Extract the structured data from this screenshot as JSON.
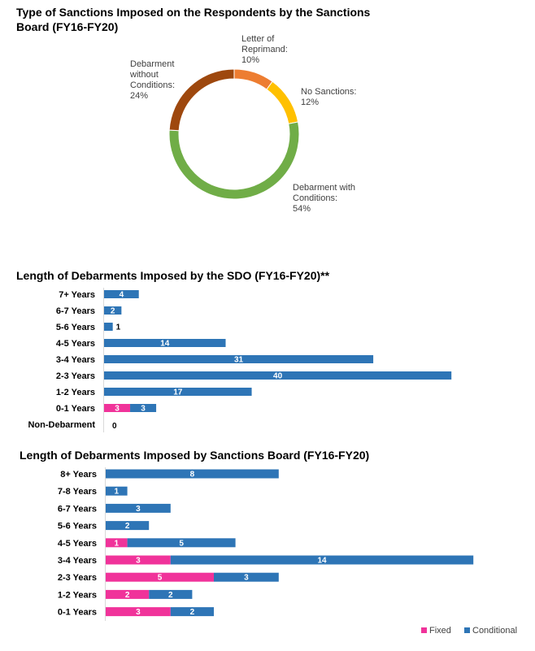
{
  "chart_data": [
    {
      "type": "pie",
      "title_line1": "Type of Sanctions Imposed on the Respondents by the Sanctions",
      "title_line2": "Board (FY16-FY20)",
      "slices": [
        {
          "name_lines": [
            "Letter of",
            "Reprimand:"
          ],
          "value": 10,
          "pct_label": "10%",
          "color": "#ED7D31"
        },
        {
          "name_lines": [
            "No Sanctions:"
          ],
          "value": 12,
          "pct_label": "12%",
          "color": "#FFC000"
        },
        {
          "name_lines": [
            "Debarment with",
            "Conditions:"
          ],
          "value": 54,
          "pct_label": "54%",
          "color": "#70AD47"
        },
        {
          "name_lines": [
            "Debarment",
            "without",
            "Conditions:"
          ],
          "value": 24,
          "pct_label": "24%",
          "color": "#9E480E"
        }
      ]
    },
    {
      "type": "bar",
      "orientation": "horizontal-stacked",
      "title": "Length of Debarments Imposed by the SDO (FY16-FY20)**",
      "categories": [
        "7+ Years",
        "6-7 Years",
        "5-6 Years",
        "4-5 Years",
        "3-4 Years",
        "2-3 Years",
        "1-2 Years",
        "0-1 Years",
        "Non-Debarment"
      ],
      "series": [
        {
          "name": "Fixed",
          "values": [
            0,
            0,
            0,
            0,
            0,
            0,
            0,
            3,
            0
          ]
        },
        {
          "name": "Conditional",
          "values": [
            4,
            2,
            1,
            14,
            31,
            40,
            17,
            3,
            0
          ]
        }
      ]
    },
    {
      "type": "bar",
      "orientation": "horizontal-stacked",
      "title": "Length of Debarments Imposed by Sanctions Board (FY16-FY20)",
      "categories": [
        "8+ Years",
        "7-8 Years",
        "6-7 Years",
        "5-6 Years",
        "4-5 Years",
        "3-4 Years",
        "2-3 Years",
        "1-2 Years",
        "0-1 Years"
      ],
      "series": [
        {
          "name": "Fixed",
          "values": [
            0,
            0,
            0,
            0,
            1,
            3,
            5,
            2,
            3
          ]
        },
        {
          "name": "Conditional",
          "values": [
            8,
            1,
            3,
            2,
            5,
            14,
            3,
            2,
            2
          ]
        }
      ]
    }
  ],
  "legend": {
    "fixed_label": "Fixed",
    "conditional_label": "Conditional"
  },
  "colors": {
    "fixed": "#F0339A",
    "conditional": "#2E75B6",
    "value_text_light": "#ffffff",
    "value_text_dark": "#000000"
  }
}
